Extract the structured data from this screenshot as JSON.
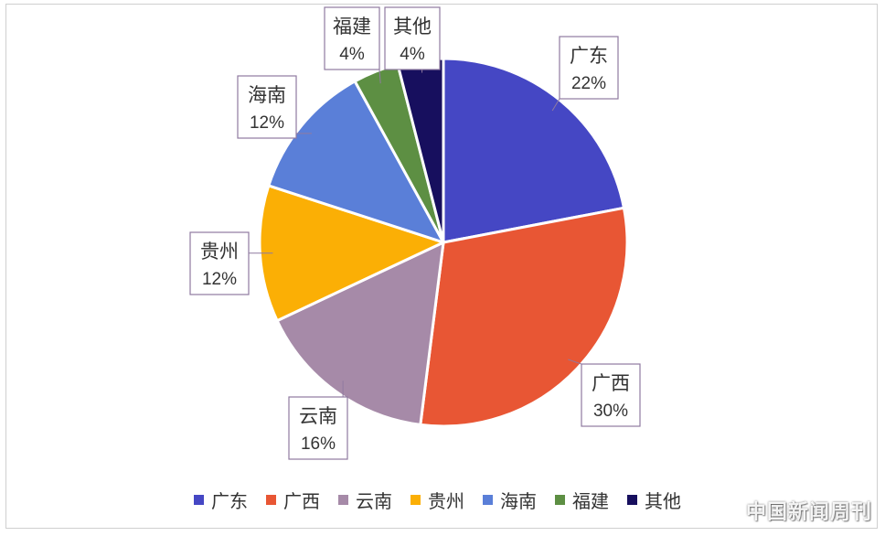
{
  "chart_data": {
    "type": "pie",
    "title": "",
    "slices": [
      {
        "label": "广东",
        "value": 22,
        "display": "22%",
        "color": "#4547C4"
      },
      {
        "label": "广西",
        "value": 30,
        "display": "30%",
        "color": "#E85634"
      },
      {
        "label": "云南",
        "value": 16,
        "display": "16%",
        "color": "#A68AA8"
      },
      {
        "label": "贵州",
        "value": 12,
        "display": "12%",
        "color": "#FBAF05"
      },
      {
        "label": "海南",
        "value": 12,
        "display": "12%",
        "color": "#5A7FD8"
      },
      {
        "label": "福建",
        "value": 4,
        "display": "4%",
        "color": "#5D8F43"
      },
      {
        "label": "其他",
        "value": 4,
        "display": "4%",
        "color": "#170F5E"
      }
    ],
    "legend_position": "bottom"
  },
  "watermark": "中国新闻周刊"
}
